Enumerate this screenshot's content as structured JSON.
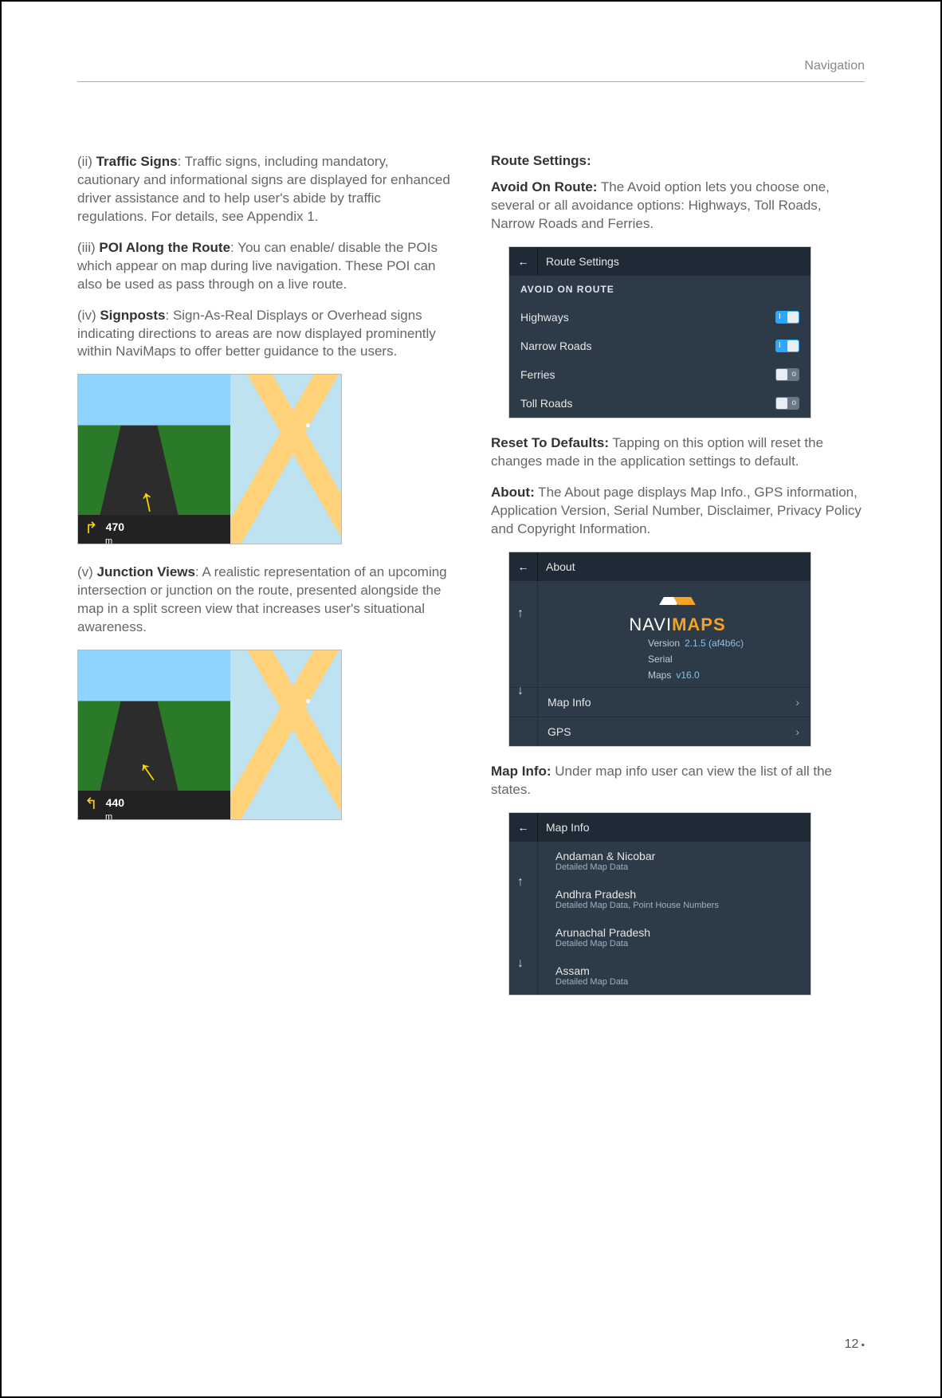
{
  "header": {
    "section": "Navigation"
  },
  "pageNumber": "12",
  "left": {
    "p1": {
      "prefix": "(ii) ",
      "lead": "Traffic Signs",
      "rest": ": Traffic signs, including mandatory, cautionary and informational signs are displayed for enhanced driver assistance and to help user's abide by traffic regulations. For details, see Appendix 1."
    },
    "p2": {
      "prefix": "(iii) ",
      "lead": "POI Along the Route",
      "rest": ": You can enable/ disable the POIs which appear on map during live navigation. These POI can also be used as pass through on a live route."
    },
    "p3": {
      "prefix": "(iv) ",
      "lead": "Signposts",
      "rest": ": Sign-As-Real Displays or Overhead signs indicating directions to areas are now displayed prominently within NaviMaps to offer better guidance to the users."
    },
    "p4": {
      "prefix": "(v) ",
      "lead": "Junction Views",
      "rest": ": A realistic representation of an upcoming intersection or junction on the route, presented alongside the map in a split screen view that increases user's situational awareness."
    },
    "fig1_distance": "470",
    "fig1_unit": "m",
    "fig2_distance": "440",
    "fig2_unit": "m"
  },
  "right": {
    "h_route": "Route Settings:",
    "p_route": {
      "lead": "Avoid On Route:",
      "rest": " The Avoid option lets you choose one, several or all avoidance options: Highways, Toll Roads, Narrow Roads and Ferries."
    },
    "routePanel": {
      "title": "Route Settings",
      "subhead": "AVOID ON ROUTE",
      "items": [
        {
          "label": "Highways",
          "on": true,
          "ind": "I"
        },
        {
          "label": "Narrow Roads",
          "on": true,
          "ind": "I"
        },
        {
          "label": "Ferries",
          "on": false,
          "ind": "o"
        },
        {
          "label": "Toll Roads",
          "on": false,
          "ind": "o"
        }
      ]
    },
    "p_reset": {
      "lead": "Reset To Defaults:",
      "rest": " Tapping on this option will reset the changes made in the application settings to default."
    },
    "p_about": {
      "lead": "About:",
      "rest": " The About page displays Map Info., GPS information, Application Version, Serial Number, Disclaimer, Privacy Policy and Copyright Information."
    },
    "aboutPanel": {
      "title": "About",
      "brand_a": "NAVI",
      "brand_b": "MAPS",
      "version_label": "Version",
      "version_value": "2.1.5 (af4b6c)",
      "serial_label": "Serial",
      "maps_label": "Maps",
      "maps_value": "v16.0",
      "rows": [
        "Map Info",
        "GPS"
      ]
    },
    "p_mapinfo": {
      "lead": "Map Info:",
      "rest": " Under map info user can view the list of all the states."
    },
    "mapInfoPanel": {
      "title": "Map Info",
      "rows": [
        {
          "t": "Andaman & Nicobar",
          "s": "Detailed Map Data"
        },
        {
          "t": "Andhra Pradesh",
          "s": "Detailed Map Data, Point House Numbers"
        },
        {
          "t": "Arunachal Pradesh",
          "s": "Detailed Map Data"
        },
        {
          "t": "Assam",
          "s": "Detailed Map Data"
        }
      ]
    }
  }
}
